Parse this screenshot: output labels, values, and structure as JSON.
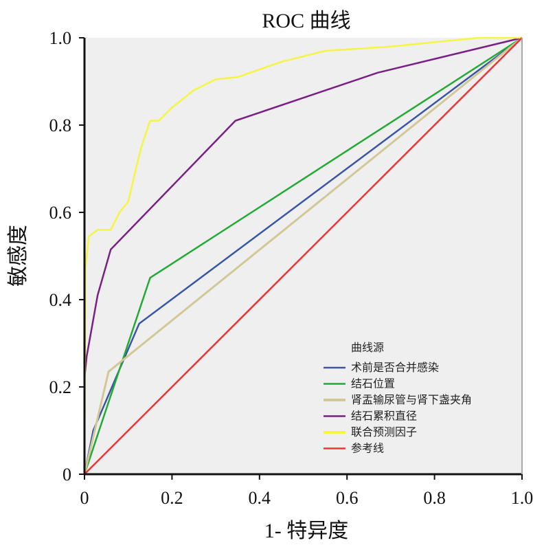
{
  "chart_data": {
    "type": "line",
    "title": "ROC 曲线",
    "xlabel": "1- 特异度",
    "ylabel": "敏感度",
    "xlim": [
      0,
      1
    ],
    "ylim": [
      0,
      1
    ],
    "xticks": [
      "0",
      "0.2",
      "0.4",
      "0.6",
      "0.8",
      "1.0"
    ],
    "yticks": [
      "0",
      "0.2",
      "0.4",
      "0.6",
      "0.8",
      "1.0"
    ],
    "legend_title": "曲线源",
    "legend_position": "bottom-right",
    "series": [
      {
        "name": "术前是否合并感染",
        "color": "#3a55a8",
        "points": [
          [
            0,
            0
          ],
          [
            0.02,
            0.1
          ],
          [
            0.125,
            0.345
          ],
          [
            1,
            1
          ]
        ]
      },
      {
        "name": "结石位置",
        "color": "#22aa33",
        "points": [
          [
            0,
            0
          ],
          [
            0.15,
            0.45
          ],
          [
            1,
            1
          ]
        ]
      },
      {
        "name": "肾盂输尿管与肾下盏夹角",
        "color": "#d2c896",
        "points": [
          [
            0,
            0
          ],
          [
            0.055,
            0.235
          ],
          [
            1,
            1
          ]
        ]
      },
      {
        "name": "结石累积直径",
        "color": "#7a1f86",
        "points": [
          [
            0,
            0.22
          ],
          [
            0.005,
            0.27
          ],
          [
            0.03,
            0.41
          ],
          [
            0.06,
            0.515
          ],
          [
            0.345,
            0.81
          ],
          [
            0.67,
            0.92
          ],
          [
            1,
            1
          ]
        ]
      },
      {
        "name": "联合预测因子",
        "color": "#f5f542",
        "points": [
          [
            0,
            0
          ],
          [
            0.002,
            0.47
          ],
          [
            0.01,
            0.545
          ],
          [
            0.03,
            0.56
          ],
          [
            0.06,
            0.56
          ],
          [
            0.08,
            0.6
          ],
          [
            0.1,
            0.625
          ],
          [
            0.12,
            0.71
          ],
          [
            0.13,
            0.75
          ],
          [
            0.15,
            0.81
          ],
          [
            0.17,
            0.81
          ],
          [
            0.2,
            0.84
          ],
          [
            0.25,
            0.88
          ],
          [
            0.3,
            0.905
          ],
          [
            0.35,
            0.91
          ],
          [
            0.45,
            0.945
          ],
          [
            0.55,
            0.97
          ],
          [
            0.7,
            0.98
          ],
          [
            0.8,
            0.99
          ],
          [
            0.9,
            1
          ],
          [
            1,
            1
          ]
        ]
      },
      {
        "name": "参考线",
        "color": "#ee3333",
        "points": [
          [
            0,
            0
          ],
          [
            1,
            1
          ]
        ]
      }
    ]
  }
}
